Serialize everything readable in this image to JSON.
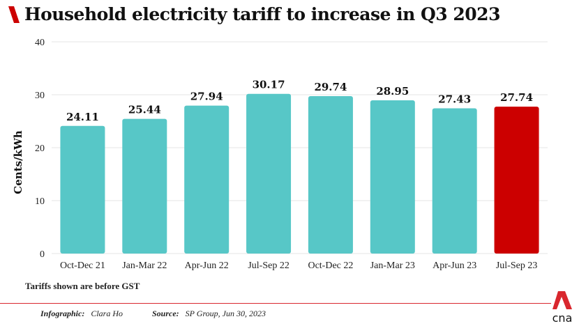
{
  "title": "Household electricity tariff to increase in Q3 2023",
  "note": "Tariffs shown are before GST",
  "credit_label": "Infographic:",
  "credit_value": "Clara Ho",
  "source_label": "Source:",
  "source_value": "SP Group, Jun 30, 2023",
  "logo_text": "cna",
  "colors": {
    "bar": "#57c7c7",
    "highlight": "#cc0000",
    "accent": "#d9272e"
  },
  "chart_data": {
    "type": "bar",
    "title": "Household electricity tariff to increase in Q3 2023",
    "ylabel": "Cents/kWh",
    "xlabel": "",
    "ylim": [
      0,
      40
    ],
    "yticks": [
      0,
      10,
      20,
      30,
      40
    ],
    "grid": true,
    "categories": [
      "Oct-Dec 21",
      "Jan-Mar 22",
      "Apr-Jun 22",
      "Jul-Sep 22",
      "Oct-Dec 22",
      "Jan-Mar 23",
      "Apr-Jun 23",
      "Jul-Sep 23"
    ],
    "values": [
      24.11,
      25.44,
      27.94,
      30.17,
      29.74,
      28.95,
      27.43,
      27.74
    ],
    "data_labels": [
      "24.11",
      "25.44",
      "27.94",
      "30.17",
      "29.74",
      "28.95",
      "27.43",
      "27.74"
    ],
    "highlight_index": 7
  }
}
